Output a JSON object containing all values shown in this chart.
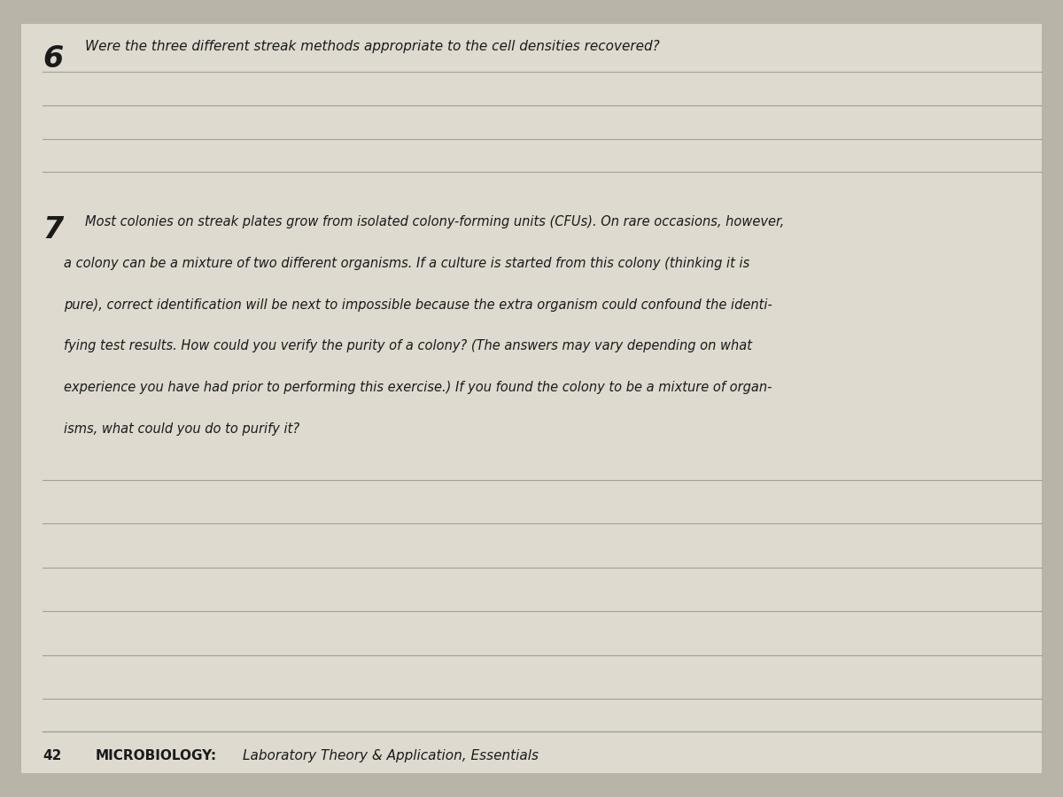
{
  "background_color": "#b8b4a8",
  "paper_bg_color": "#dedad0",
  "line_color": "#a0a098",
  "question6_number": "6",
  "question6_text": "Were the three different streak methods appropriate to the cell densities recovered?",
  "question7_number": "7",
  "question7_line1": "Most colonies on streak plates grow from isolated colony-forming units (CFUs). On rare occasions, however,",
  "question7_line2": "a colony can be a mixture of two different organisms. If a culture is started from this colony (thinking it is",
  "question7_line3": "pure), correct identification will be next to impossible because the extra organism could confound the identi-",
  "question7_line4": "fying test results. How could you verify the purity of a colony? (The answers may vary depending on what",
  "question7_line5": "experience you have had prior to performing this exercise.) If you found the colony to be a mixture of organ-",
  "question7_line6": "isms, what could you do to purify it?",
  "footer_number": "42",
  "footer_text_bold": "MICROBIOLOGY:",
  "footer_text_italic": "Laboratory Theory & Application, Essentials",
  "text_color": "#1a1a1a",
  "footer_text_color": "#1a1a1a",
  "num_answer_lines_q6": 3,
  "num_answer_lines_q7": 6
}
